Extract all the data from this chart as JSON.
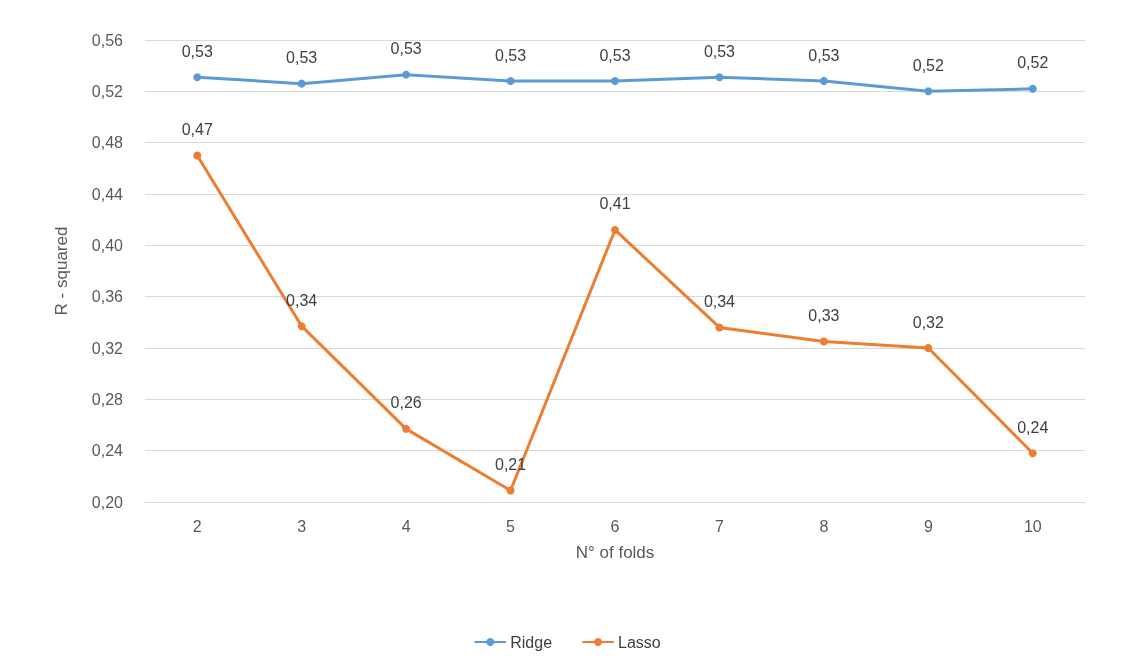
{
  "chart_data": {
    "type": "line",
    "xlabel": "N° of folds",
    "ylabel": "R - squared",
    "categories": [
      "2",
      "3",
      "4",
      "5",
      "6",
      "7",
      "8",
      "9",
      "10"
    ],
    "series": [
      {
        "name": "Ridge",
        "color": "#5b9bd5",
        "values": [
          0.531,
          0.526,
          0.533,
          0.528,
          0.528,
          0.531,
          0.528,
          0.52,
          0.522
        ],
        "value_labels": [
          "0,53",
          "0,53",
          "0,53",
          "0,53",
          "0,53",
          "0,53",
          "0,53",
          "0,52",
          "0,52"
        ]
      },
      {
        "name": "Lasso",
        "color": "#ed7d31",
        "values": [
          0.47,
          0.337,
          0.257,
          0.209,
          0.412,
          0.336,
          0.325,
          0.32,
          0.238
        ],
        "value_labels": [
          "0,47",
          "0,34",
          "0,26",
          "0,21",
          "0,41",
          "0,34",
          "0,33",
          "0,32",
          "0,24"
        ]
      }
    ],
    "ylim": [
      0.2,
      0.56
    ],
    "yticks": [
      {
        "value": 0.2,
        "label": "0,20"
      },
      {
        "value": 0.24,
        "label": "0,24"
      },
      {
        "value": 0.28,
        "label": "0,28"
      },
      {
        "value": 0.32,
        "label": "0,32"
      },
      {
        "value": 0.36,
        "label": "0,36"
      },
      {
        "value": 0.4,
        "label": "0,40"
      },
      {
        "value": 0.44,
        "label": "0,44"
      },
      {
        "value": 0.48,
        "label": "0,48"
      },
      {
        "value": 0.52,
        "label": "0,52"
      },
      {
        "value": 0.56,
        "label": "0,56"
      }
    ],
    "grid": "y",
    "legend": "bottom",
    "marker": "circle",
    "line_style": "solid"
  }
}
